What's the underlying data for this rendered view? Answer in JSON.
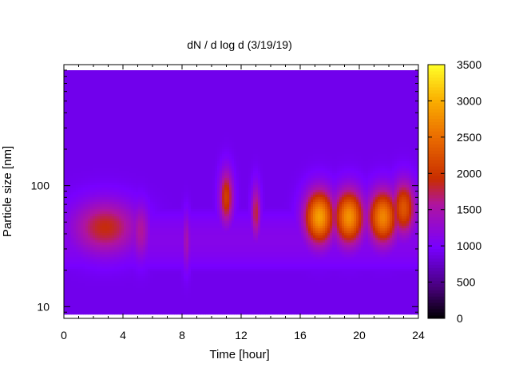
{
  "chart_data": {
    "type": "heatmap",
    "title": "dN / d log d (3/19/19)",
    "xlabel": "Time [hour]",
    "ylabel": "Particle size [nm]",
    "xlim": [
      0,
      24
    ],
    "xticks": [
      0,
      4,
      8,
      12,
      16,
      20,
      24
    ],
    "x_tick_labels": [
      "0",
      "4",
      "8",
      "12",
      "16",
      "20",
      "24"
    ],
    "yscale": "log",
    "ylim": [
      8,
      1000
    ],
    "yticks": [
      10,
      100
    ],
    "y_tick_labels": [
      "10",
      "100"
    ],
    "colorbar": {
      "range": [
        0,
        3500
      ],
      "ticks": [
        0,
        500,
        1000,
        1500,
        2000,
        2500,
        3000,
        3500
      ],
      "tick_labels": [
        "0",
        "500",
        "1000",
        "1500",
        "2000",
        "2500",
        "3000",
        "3500"
      ],
      "palette": "black-purple-red-orange-yellow"
    },
    "features": [
      {
        "t_center": 2.8,
        "t_width": 2.2,
        "d_center_nm": 45,
        "peak": 1900
      },
      {
        "t_center": 5.2,
        "t_width": 0.6,
        "d_center_nm": 42,
        "peak": 1600
      },
      {
        "t_center": 8.3,
        "t_width": 0.25,
        "d_center_nm": 35,
        "peak": 1500
      },
      {
        "t_center": 11.0,
        "t_width": 0.45,
        "d_center_nm": 80,
        "peak": 2100
      },
      {
        "t_center": 13.0,
        "t_width": 0.3,
        "d_center_nm": 60,
        "peak": 1800
      },
      {
        "t_center": 17.3,
        "t_width": 1.0,
        "d_center_nm": 55,
        "peak": 2900
      },
      {
        "t_center": 19.3,
        "t_width": 1.0,
        "d_center_nm": 55,
        "peak": 2800
      },
      {
        "t_center": 21.6,
        "t_width": 1.0,
        "d_center_nm": 55,
        "peak": 2700
      },
      {
        "t_center": 23.0,
        "t_width": 0.8,
        "d_center_nm": 65,
        "peak": 2300
      }
    ]
  }
}
